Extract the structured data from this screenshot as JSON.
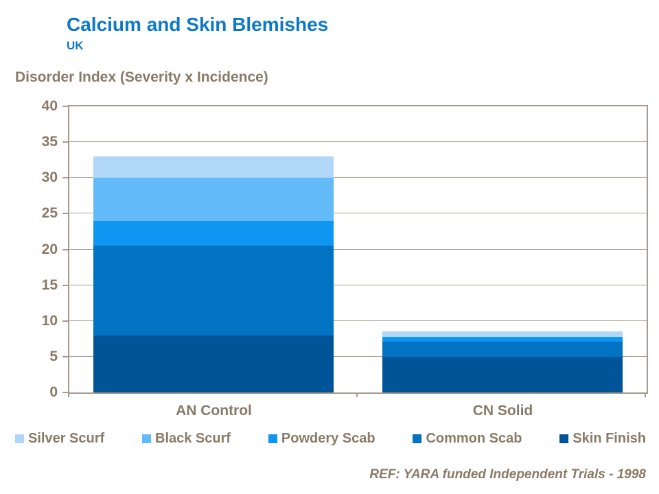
{
  "header": {
    "title": "Calcium and Skin Blemishes",
    "subtitle": "UK"
  },
  "footer": {
    "ref": "REF: YARA funded Independent Trials - 1998"
  },
  "colors": {
    "title_blue": "#0B78C8",
    "text_brown": "#897A67",
    "line_gray": "#A79A8B"
  },
  "chart_data": {
    "type": "bar",
    "stacked": true,
    "title": "Disorder Index (Severity x Incidence)",
    "categories": [
      "AN Control",
      "CN Solid"
    ],
    "series": [
      {
        "name": "Skin Finish",
        "color": "#025499",
        "values": [
          8.0,
          5.0
        ]
      },
      {
        "name": "Common Scab",
        "color": "#0273C2",
        "values": [
          12.5,
          2.1
        ]
      },
      {
        "name": "Powdery Scab",
        "color": "#0F95F2",
        "values": [
          3.5,
          0.7
        ]
      },
      {
        "name": "Black Scurf",
        "color": "#63BAF8",
        "values": [
          6.0,
          0.0
        ]
      },
      {
        "name": "Silver Scurf",
        "color": "#B0D7F8",
        "values": [
          3.0,
          0.7
        ]
      }
    ],
    "totals": [
      33.0,
      8.5
    ],
    "legend_order": [
      "Silver Scurf",
      "Black Scurf",
      "Powdery Scab",
      "Common Scab",
      "Skin Finish"
    ],
    "ylim": [
      0,
      40
    ],
    "ytick_step": 5,
    "ytick_labels": [
      "40",
      "35",
      "30",
      "25",
      "20",
      "15",
      "10",
      "5",
      "0"
    ],
    "grid": true,
    "legend_position": "bottom"
  }
}
